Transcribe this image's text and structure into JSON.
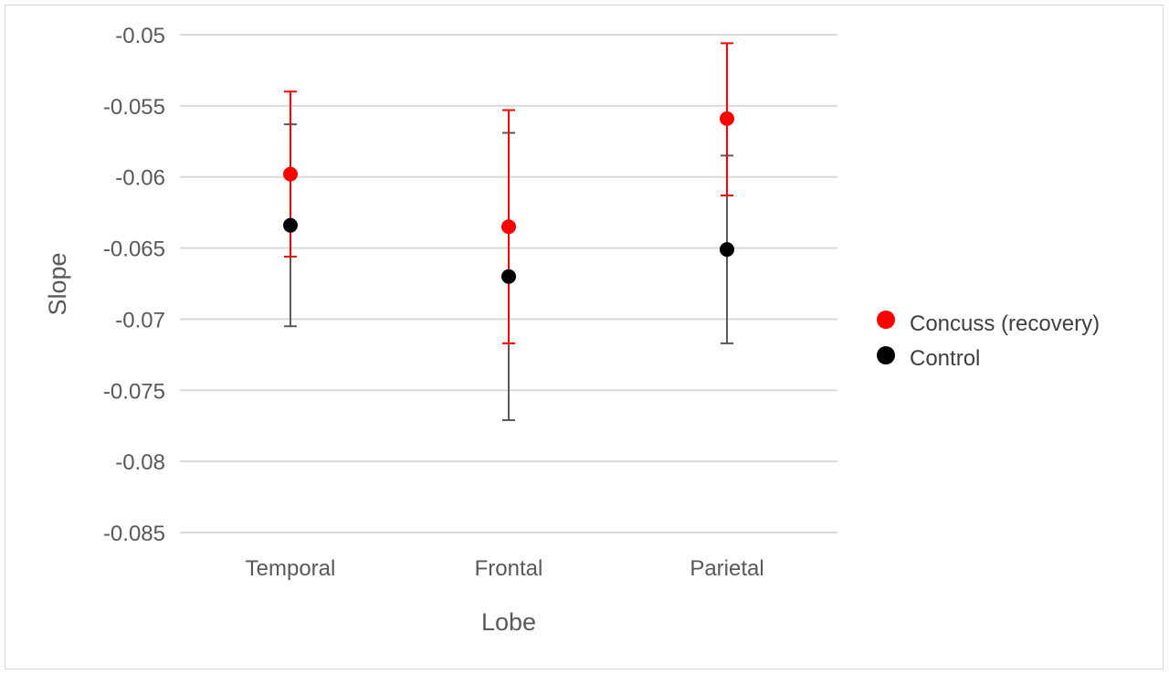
{
  "chart_data": {
    "type": "scatter",
    "categories": [
      "Temporal",
      "Frontal",
      "Parietal"
    ],
    "xlabel": "Lobe",
    "ylabel": "Slope",
    "ylim": [
      -0.085,
      -0.05
    ],
    "yticks": [
      -0.05,
      -0.055,
      -0.06,
      -0.065,
      -0.07,
      -0.075,
      -0.08,
      -0.085
    ],
    "ytick_labels": [
      "-0.05",
      "-0.055",
      "-0.06",
      "-0.065",
      "-0.07",
      "-0.075",
      "-0.08",
      "-0.085"
    ],
    "grid": true,
    "legend_position": "right",
    "series": [
      {
        "name": "Concuss (recovery)",
        "color": "#ff0000",
        "values": [
          -0.0598,
          -0.0635,
          -0.0559
        ],
        "error_high": [
          -0.054,
          -0.0553,
          -0.0506
        ],
        "error_low": [
          -0.0656,
          -0.0717,
          -0.0613
        ]
      },
      {
        "name": "Control",
        "color": "#000000",
        "errorbar_color": "#595959",
        "values": [
          -0.0634,
          -0.067,
          -0.0651
        ],
        "error_high": [
          -0.0563,
          -0.0569,
          -0.0585
        ],
        "error_low": [
          -0.0705,
          -0.0771,
          -0.0717
        ]
      }
    ]
  }
}
